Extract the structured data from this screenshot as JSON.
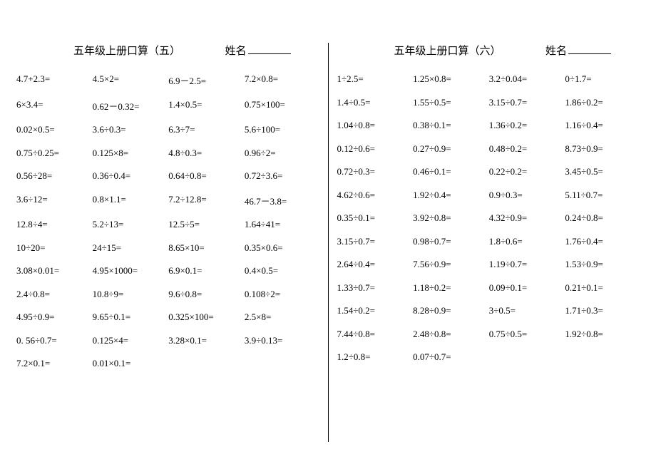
{
  "background_color": "#ffffff",
  "text_color": "#000000",
  "font_family": "SimSun, Times New Roman, serif",
  "body_fontsize": 13,
  "header_fontsize": 15,
  "left": {
    "title": "五年级上册口算（五）",
    "name_label": "姓名",
    "columns": 4,
    "rows": [
      [
        "4.7+2.3=",
        "4.5×2=",
        "6.9－2.5=",
        "7.2×0.8="
      ],
      [
        "6×3.4=",
        "0.62－0.32=",
        "1.4×0.5=",
        "0.75×100="
      ],
      [
        "0.02×0.5=",
        "3.6÷0.3=",
        "6.3÷7=",
        "5.6÷100="
      ],
      [
        "0.75÷0.25=",
        "0.125×8=",
        "4.8÷0.3=",
        "0.96÷2="
      ],
      [
        "0.56÷28=",
        "0.36÷0.4=",
        "0.64÷0.8=",
        "0.72÷3.6="
      ],
      [
        "3.6÷12=",
        "0.8×1.1=",
        "7.2÷12.8=",
        "46.7－3.8="
      ],
      [
        "12.8÷4=",
        "5.2÷13=",
        "12.5÷5=",
        "1.64÷41="
      ],
      [
        "10÷20=",
        "24÷15=",
        "8.65×10=",
        "0.35×0.6="
      ],
      [
        "3.08×0.01=",
        "4.95×1000=",
        "6.9×0.1=",
        "0.4×0.5="
      ],
      [
        "2.4÷0.8=",
        "10.8÷9=",
        "9.6÷0.8=",
        "0.108÷2="
      ],
      [
        "4.95÷0.9=",
        "9.65÷0.1=",
        "0.325×100=",
        "2.5×8="
      ],
      [
        "0. 56÷0.7=",
        "0.125×4=",
        "3.28×0.1=",
        "3.9÷0.13="
      ],
      [
        "7.2×0.1=",
        "0.01×0.1=",
        "",
        ""
      ]
    ]
  },
  "right": {
    "title": "五年级上册口算（六）",
    "name_label": "姓名",
    "columns": 4,
    "rows": [
      [
        "1÷2.5=",
        "1.25×0.8=",
        "3.2÷0.04=",
        "0÷1.7="
      ],
      [
        "1.4÷0.5=",
        "1.55÷0.5=",
        "3.15÷0.7=",
        "1.86÷0.2="
      ],
      [
        "1.04÷0.8=",
        "0.38÷0.1=",
        "1.36÷0.2=",
        "1.16÷0.4="
      ],
      [
        "0.12÷0.6=",
        "0.27÷0.9=",
        "0.48÷0.2=",
        "8.73÷0.9="
      ],
      [
        "0.72÷0.3=",
        "0.46÷0.1=",
        "0.22÷0.2=",
        "3.45÷0.5="
      ],
      [
        "4.62÷0.6=",
        "1.92÷0.4=",
        "0.9÷0.3=",
        "5.11÷0.7="
      ],
      [
        "0.35÷0.1=",
        "3.92÷0.8=",
        "4.32÷0.9=",
        "0.24÷0.8="
      ],
      [
        "3.15÷0.7=",
        "0.98÷0.7=",
        "1.8÷0.6=",
        "1.76÷0.4="
      ],
      [
        "2.64÷0.4=",
        "7.56÷0.9=",
        "1.19÷0.7=",
        "1.53÷0.9="
      ],
      [
        "1.33÷0.7=",
        "1.18÷0.2=",
        "0.09÷0.1=",
        "0.21÷0.1="
      ],
      [
        "1.54÷0.2=",
        "8.28÷0.9=",
        "3÷0.5=",
        "1.71÷0.3="
      ],
      [
        "7.44÷0.8=",
        "2.48÷0.8=",
        "0.75÷0.5=",
        "1.92÷0.8="
      ],
      [
        "1.2÷0.8=",
        "0.07÷0.7=",
        "",
        ""
      ]
    ]
  }
}
